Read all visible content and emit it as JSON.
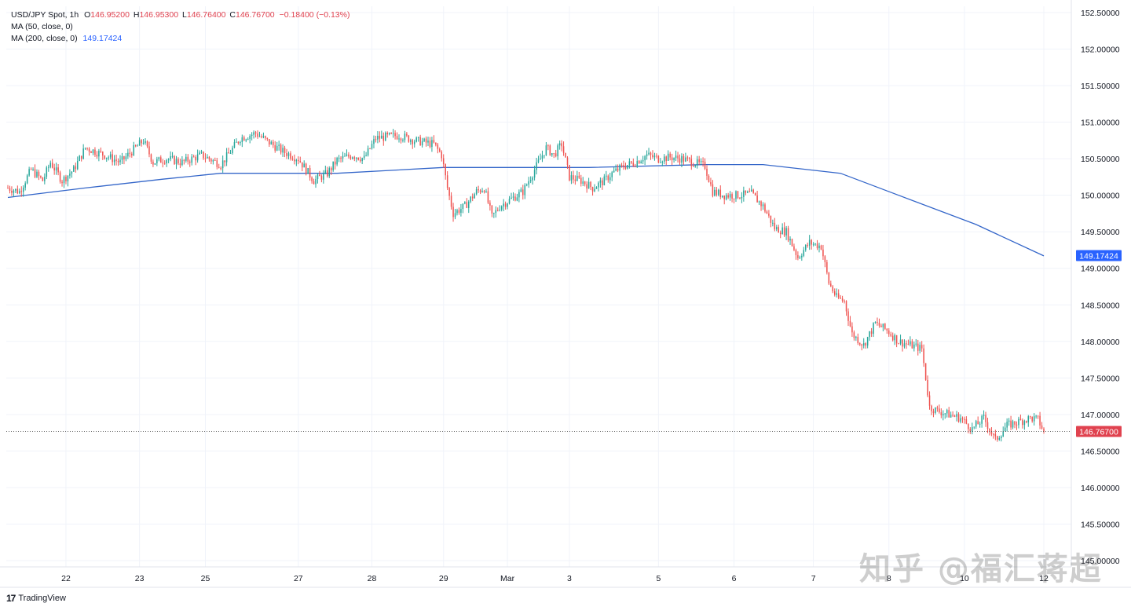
{
  "legend": {
    "symbol": "USD/JPY Spot, 1h",
    "o_label": "O",
    "o_value": "146.95200",
    "h_label": "H",
    "h_value": "146.95300",
    "l_label": "L",
    "l_value": "146.76400",
    "c_label": "C",
    "c_value": "146.76700",
    "change": "−0.18400 (−0.13%)",
    "ma50": "MA (50, close, 0)",
    "ma200": "MA (200, close, 0)",
    "ma200_value": "149.17424"
  },
  "footer": {
    "brand": "TradingView",
    "brand_mark": "17"
  },
  "watermark": "知乎 @福汇蒋超",
  "colors": {
    "up": "#26a69a",
    "down": "#ef5350",
    "ma200": "#3466c9",
    "last_price": "#e0424f",
    "ma_tag": "#2962ff",
    "grid": "#f0f3fa"
  },
  "chart_data": {
    "type": "candlestick",
    "title": "USD/JPY Spot, 1h",
    "ylim": [
      145.0,
      152.6
    ],
    "y_ticks": [
      "152.50000",
      "152.00000",
      "151.50000",
      "151.00000",
      "150.50000",
      "150.00000",
      "149.50000",
      "149.00000",
      "148.50000",
      "148.00000",
      "147.50000",
      "147.00000",
      "146.50000",
      "146.00000",
      "145.50000",
      "145.00000"
    ],
    "y_tick_values": [
      152.5,
      152.0,
      151.5,
      151.0,
      150.5,
      150.0,
      149.5,
      149.0,
      148.5,
      148.0,
      147.5,
      147.0,
      146.5,
      146.0,
      145.5,
      145.0
    ],
    "x_tick_labels": [
      "22",
      "23",
      "25",
      "27",
      "28",
      "29",
      "Mar",
      "3",
      "5",
      "6",
      "7",
      "8",
      "10",
      "12"
    ],
    "x_tick_index": [
      30,
      68,
      102,
      150,
      188,
      225,
      258,
      290,
      336,
      375,
      416,
      455,
      494,
      535
    ],
    "last_price": 146.767,
    "last_price_label": "146.76700",
    "ma200_label": "149.17424",
    "ma200": {
      "name": "MA (200, close, 0)",
      "points": [
        [
          0,
          149.97
        ],
        [
          40,
          150.1
        ],
        [
          80,
          150.22
        ],
        [
          110,
          150.3
        ],
        [
          170,
          150.3
        ],
        [
          225,
          150.38
        ],
        [
          300,
          150.38
        ],
        [
          360,
          150.42
        ],
        [
          390,
          150.42
        ],
        [
          430,
          150.3
        ],
        [
          460,
          150.0
        ],
        [
          500,
          149.6
        ],
        [
          535,
          149.17
        ]
      ]
    },
    "price_path": [
      [
        0,
        150.1
      ],
      [
        6,
        150.05
      ],
      [
        12,
        150.35
      ],
      [
        18,
        150.2
      ],
      [
        22,
        150.45
      ],
      [
        28,
        150.2
      ],
      [
        34,
        150.35
      ],
      [
        40,
        150.65
      ],
      [
        50,
        150.55
      ],
      [
        58,
        150.45
      ],
      [
        64,
        150.6
      ],
      [
        70,
        150.75
      ],
      [
        75,
        150.45
      ],
      [
        82,
        150.5
      ],
      [
        90,
        150.45
      ],
      [
        100,
        150.55
      ],
      [
        110,
        150.42
      ],
      [
        120,
        150.78
      ],
      [
        128,
        150.85
      ],
      [
        135,
        150.72
      ],
      [
        142,
        150.6
      ],
      [
        150,
        150.5
      ],
      [
        158,
        150.2
      ],
      [
        165,
        150.3
      ],
      [
        170,
        150.48
      ],
      [
        178,
        150.55
      ],
      [
        184,
        150.5
      ],
      [
        190,
        150.78
      ],
      [
        196,
        150.8
      ],
      [
        202,
        150.82
      ],
      [
        210,
        150.75
      ],
      [
        220,
        150.7
      ],
      [
        224,
        150.55
      ],
      [
        227,
        150.1
      ],
      [
        230,
        149.75
      ],
      [
        236,
        149.85
      ],
      [
        242,
        150.05
      ],
      [
        246,
        150.1
      ],
      [
        250,
        149.7
      ],
      [
        254,
        149.85
      ],
      [
        260,
        149.95
      ],
      [
        266,
        150.05
      ],
      [
        272,
        150.35
      ],
      [
        278,
        150.65
      ],
      [
        282,
        150.55
      ],
      [
        286,
        150.7
      ],
      [
        290,
        150.25
      ],
      [
        296,
        150.2
      ],
      [
        302,
        150.1
      ],
      [
        308,
        150.2
      ],
      [
        312,
        150.3
      ],
      [
        318,
        150.4
      ],
      [
        324,
        150.45
      ],
      [
        330,
        150.55
      ],
      [
        336,
        150.5
      ],
      [
        342,
        150.52
      ],
      [
        348,
        150.5
      ],
      [
        354,
        150.45
      ],
      [
        360,
        150.4
      ],
      [
        364,
        150.05
      ],
      [
        370,
        150.0
      ],
      [
        378,
        150.0
      ],
      [
        384,
        150.02
      ],
      [
        390,
        149.85
      ],
      [
        396,
        149.55
      ],
      [
        402,
        149.5
      ],
      [
        408,
        149.15
      ],
      [
        414,
        149.35
      ],
      [
        420,
        149.3
      ],
      [
        424,
        148.8
      ],
      [
        428,
        148.6
      ],
      [
        432,
        148.55
      ],
      [
        436,
        148.1
      ],
      [
        442,
        147.95
      ],
      [
        448,
        148.25
      ],
      [
        454,
        148.15
      ],
      [
        460,
        148.0
      ],
      [
        466,
        147.95
      ],
      [
        472,
        147.9
      ],
      [
        476,
        147.1
      ],
      [
        480,
        147.05
      ],
      [
        486,
        147.0
      ],
      [
        492,
        146.95
      ],
      [
        498,
        146.8
      ],
      [
        504,
        146.95
      ],
      [
        510,
        146.65
      ],
      [
        516,
        146.85
      ],
      [
        522,
        146.9
      ],
      [
        528,
        146.95
      ],
      [
        532,
        146.93
      ],
      [
        535,
        146.767
      ]
    ]
  }
}
